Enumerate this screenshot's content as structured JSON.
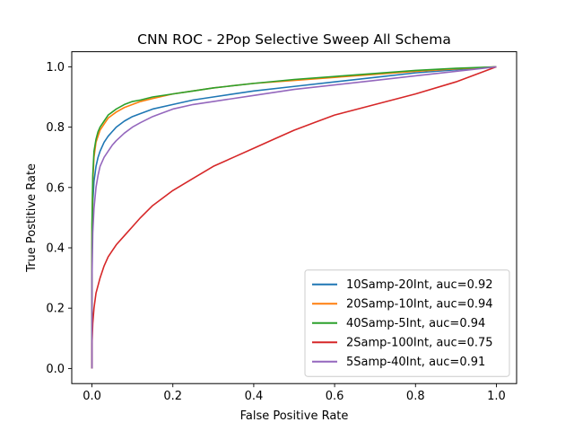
{
  "chart_data": {
    "type": "line",
    "title": "CNN ROC - 2Pop Selective Sweep All Schema",
    "xlabel": "False Positive Rate",
    "ylabel": "True Postitive Rate",
    "xlim": [
      -0.05,
      1.05
    ],
    "ylim": [
      -0.05,
      1.05
    ],
    "xticks": [
      0.0,
      0.2,
      0.4,
      0.6,
      0.8,
      1.0
    ],
    "yticks": [
      0.0,
      0.2,
      0.4,
      0.6,
      0.8,
      1.0
    ],
    "xtick_labels": [
      "0.0",
      "0.2",
      "0.4",
      "0.6",
      "0.8",
      "1.0"
    ],
    "ytick_labels": [
      "0.0",
      "0.2",
      "0.4",
      "0.6",
      "0.8",
      "1.0"
    ],
    "grid": false,
    "legend_position": "lower-right",
    "series": [
      {
        "name": "10Samp-20Int, auc=0.92",
        "color": "#1f77b4",
        "x": [
          0,
          0,
          0.002,
          0.005,
          0.01,
          0.015,
          0.02,
          0.03,
          0.04,
          0.05,
          0.06,
          0.08,
          0.1,
          0.12,
          0.15,
          0.2,
          0.25,
          0.3,
          0.4,
          0.5,
          0.6,
          0.7,
          0.8,
          0.9,
          1.0
        ],
        "y": [
          0,
          0.4,
          0.55,
          0.62,
          0.67,
          0.7,
          0.72,
          0.75,
          0.77,
          0.785,
          0.8,
          0.82,
          0.835,
          0.845,
          0.86,
          0.875,
          0.89,
          0.9,
          0.92,
          0.935,
          0.95,
          0.965,
          0.98,
          0.99,
          1.0
        ]
      },
      {
        "name": "20Samp-10Int, auc=0.94",
        "color": "#ff7f0e",
        "x": [
          0,
          0,
          0.002,
          0.005,
          0.01,
          0.015,
          0.02,
          0.03,
          0.04,
          0.05,
          0.06,
          0.08,
          0.1,
          0.12,
          0.15,
          0.2,
          0.25,
          0.3,
          0.4,
          0.5,
          0.6,
          0.7,
          0.8,
          0.9,
          1.0
        ],
        "y": [
          0,
          0.45,
          0.62,
          0.7,
          0.75,
          0.77,
          0.79,
          0.81,
          0.83,
          0.84,
          0.85,
          0.865,
          0.875,
          0.885,
          0.895,
          0.91,
          0.92,
          0.93,
          0.945,
          0.955,
          0.965,
          0.975,
          0.985,
          0.993,
          1.0
        ]
      },
      {
        "name": "40Samp-5Int, auc=0.94",
        "color": "#2ca02c",
        "x": [
          0,
          0,
          0.002,
          0.005,
          0.01,
          0.015,
          0.02,
          0.03,
          0.04,
          0.05,
          0.06,
          0.08,
          0.1,
          0.12,
          0.15,
          0.2,
          0.25,
          0.3,
          0.4,
          0.5,
          0.6,
          0.7,
          0.8,
          0.9,
          1.0
        ],
        "y": [
          0,
          0.48,
          0.64,
          0.72,
          0.76,
          0.785,
          0.8,
          0.82,
          0.84,
          0.85,
          0.86,
          0.875,
          0.885,
          0.89,
          0.9,
          0.91,
          0.92,
          0.93,
          0.945,
          0.958,
          0.968,
          0.978,
          0.988,
          0.995,
          1.0
        ]
      },
      {
        "name": "2Samp-100Int, auc=0.75",
        "color": "#d62728",
        "x": [
          0,
          0,
          0.002,
          0.005,
          0.01,
          0.02,
          0.03,
          0.04,
          0.05,
          0.06,
          0.08,
          0.1,
          0.12,
          0.15,
          0.2,
          0.25,
          0.3,
          0.35,
          0.4,
          0.45,
          0.5,
          0.55,
          0.6,
          0.7,
          0.8,
          0.9,
          1.0
        ],
        "y": [
          0,
          0.08,
          0.15,
          0.2,
          0.25,
          0.3,
          0.34,
          0.37,
          0.39,
          0.41,
          0.44,
          0.47,
          0.5,
          0.54,
          0.59,
          0.63,
          0.67,
          0.7,
          0.73,
          0.76,
          0.79,
          0.815,
          0.84,
          0.875,
          0.91,
          0.95,
          1.0
        ]
      },
      {
        "name": "5Samp-40Int, auc=0.91",
        "color": "#9467bd",
        "x": [
          0,
          0,
          0.002,
          0.005,
          0.01,
          0.015,
          0.02,
          0.03,
          0.04,
          0.05,
          0.06,
          0.08,
          0.1,
          0.12,
          0.15,
          0.2,
          0.25,
          0.3,
          0.4,
          0.5,
          0.6,
          0.7,
          0.8,
          0.9,
          1.0
        ],
        "y": [
          0,
          0.3,
          0.45,
          0.53,
          0.6,
          0.64,
          0.67,
          0.7,
          0.72,
          0.74,
          0.755,
          0.78,
          0.8,
          0.815,
          0.835,
          0.86,
          0.875,
          0.885,
          0.905,
          0.925,
          0.94,
          0.955,
          0.97,
          0.985,
          1.0
        ]
      }
    ]
  }
}
